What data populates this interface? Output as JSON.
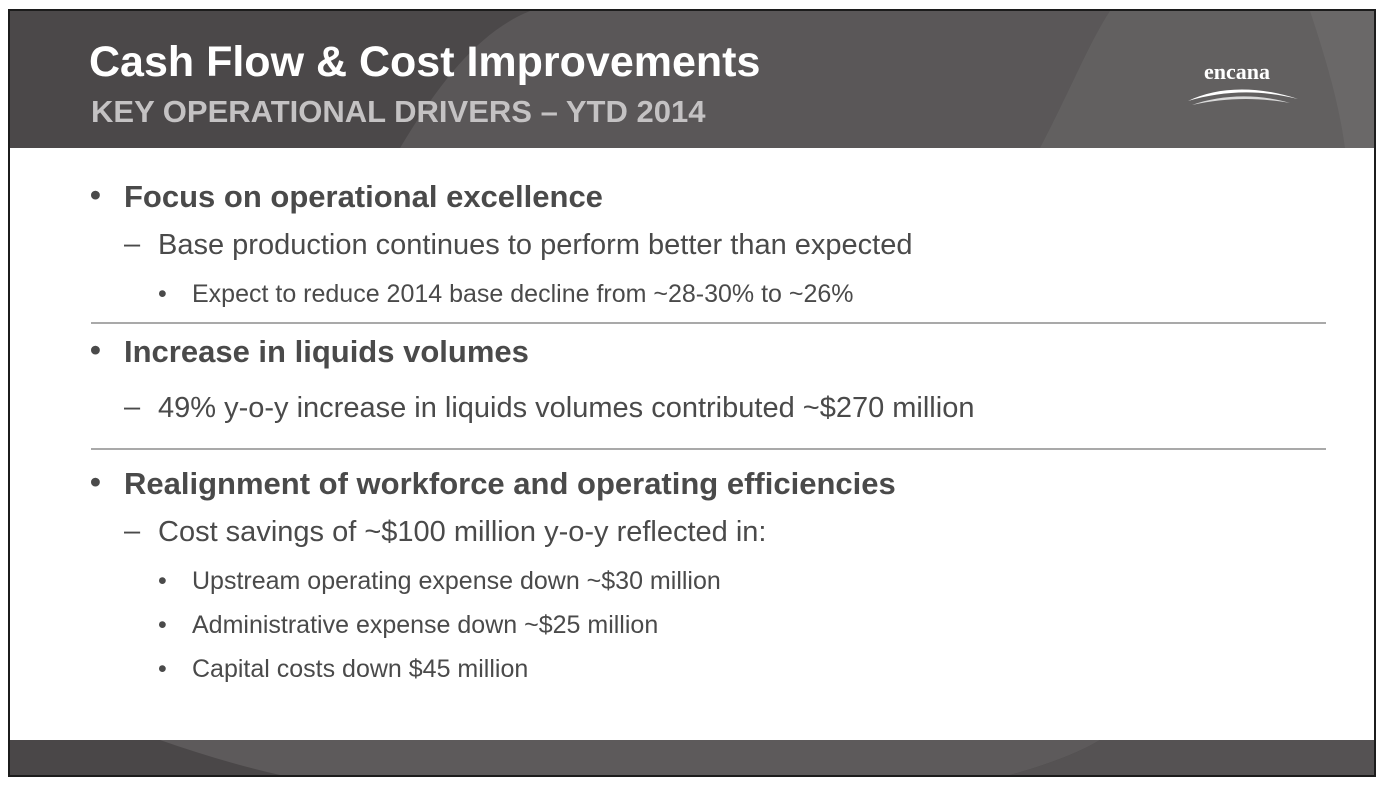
{
  "header": {
    "title": "Cash Flow & Cost Improvements",
    "subtitle": "KEY OPERATIONAL DRIVERS – YTD 2014",
    "logo_text": "encana"
  },
  "sections": [
    {
      "heading": "Focus on operational excellence",
      "items": [
        {
          "text": "Base production continues to perform better than expected",
          "subitems": [
            "Expect to reduce 2014 base decline from ~28-30% to ~26%"
          ]
        }
      ]
    },
    {
      "heading": "Increase in liquids volumes",
      "items": [
        {
          "text": "49% y-o-y increase in liquids volumes contributed ~$270 million",
          "subitems": []
        }
      ]
    },
    {
      "heading": "Realignment of workforce and operating efficiencies",
      "items": [
        {
          "text": "Cost savings of ~$100 million y-o-y reflected in:",
          "subitems": [
            "Upstream operating expense down ~$30 million",
            "Administrative expense down ~$25 million",
            "Capital costs down $45 million"
          ]
        }
      ]
    }
  ],
  "markers": {
    "bullet": "•",
    "dash": "–"
  }
}
